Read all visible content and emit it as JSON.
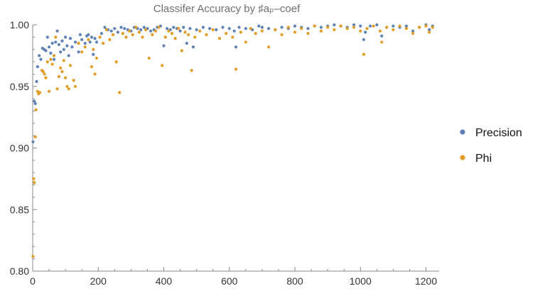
{
  "chart_data": {
    "type": "scatter",
    "title": "Classifer Accuracy by ♯aₚ–coef",
    "xlabel": "",
    "ylabel": "",
    "xlim": [
      0,
      1240
    ],
    "ylim": [
      0.8,
      1.0
    ],
    "x_ticks": [
      0,
      200,
      400,
      600,
      800,
      1000,
      1200
    ],
    "y_ticks": [
      0.8,
      0.85,
      0.9,
      0.95,
      1.0
    ],
    "x_tick_labels": [
      "0",
      "200",
      "400",
      "600",
      "800",
      "1000",
      "1200"
    ],
    "y_tick_labels": [
      "0.80",
      "0.85",
      "0.90",
      "0.95",
      "1.00"
    ],
    "legend_position": "right",
    "series": [
      {
        "name": "Precision",
        "color": "#5e81b5",
        "points": [
          [
            1,
            0.905
          ],
          [
            5,
            0.938
          ],
          [
            8,
            0.936
          ],
          [
            12,
            0.954
          ],
          [
            15,
            0.966
          ],
          [
            20,
            0.975
          ],
          [
            25,
            0.972
          ],
          [
            30,
            0.981
          ],
          [
            35,
            0.98
          ],
          [
            40,
            0.979
          ],
          [
            45,
            0.99
          ],
          [
            50,
            0.982
          ],
          [
            55,
            0.977
          ],
          [
            60,
            0.985
          ],
          [
            65,
            0.972
          ],
          [
            70,
            0.986
          ],
          [
            75,
            0.995
          ],
          [
            80,
            0.984
          ],
          [
            85,
            0.978
          ],
          [
            90,
            0.987
          ],
          [
            95,
            0.98
          ],
          [
            100,
            0.99
          ],
          [
            105,
            0.983
          ],
          [
            110,
            0.975
          ],
          [
            115,
            0.989
          ],
          [
            120,
            0.982
          ],
          [
            130,
            0.986
          ],
          [
            140,
            0.978
          ],
          [
            145,
            0.992
          ],
          [
            150,
            0.988
          ],
          [
            160,
            0.985
          ],
          [
            165,
            0.991
          ],
          [
            170,
            0.992
          ],
          [
            175,
            0.986
          ],
          [
            180,
            0.99
          ],
          [
            185,
            0.976
          ],
          [
            190,
            0.989
          ],
          [
            195,
            0.986
          ],
          [
            210,
            0.993
          ],
          [
            220,
            0.998
          ],
          [
            230,
            0.996
          ],
          [
            240,
            0.995
          ],
          [
            250,
            0.997
          ],
          [
            260,
            0.994
          ],
          [
            270,
            0.998
          ],
          [
            280,
            0.997
          ],
          [
            290,
            0.996
          ],
          [
            300,
            0.995
          ],
          [
            310,
            0.998
          ],
          [
            320,
            0.997
          ],
          [
            330,
            0.996
          ],
          [
            340,
            0.998
          ],
          [
            350,
            0.997
          ],
          [
            360,
            0.995
          ],
          [
            370,
            0.996
          ],
          [
            380,
            0.998
          ],
          [
            390,
            0.999
          ],
          [
            400,
            0.983
          ],
          [
            410,
            0.997
          ],
          [
            420,
            0.996
          ],
          [
            430,
            0.998
          ],
          [
            440,
            0.997
          ],
          [
            450,
            0.995
          ],
          [
            460,
            0.998
          ],
          [
            470,
            0.985
          ],
          [
            480,
            0.997
          ],
          [
            490,
            0.982
          ],
          [
            500,
            0.996
          ],
          [
            520,
            0.998
          ],
          [
            540,
            0.997
          ],
          [
            560,
            0.996
          ],
          [
            580,
            0.998
          ],
          [
            600,
            0.997
          ],
          [
            615,
            0.995
          ],
          [
            620,
            0.982
          ],
          [
            630,
            0.998
          ],
          [
            650,
            0.997
          ],
          [
            670,
            0.996
          ],
          [
            690,
            0.999
          ],
          [
            700,
            0.998
          ],
          [
            720,
            0.997
          ],
          [
            740,
            0.996
          ],
          [
            760,
            0.998
          ],
          [
            780,
            0.997
          ],
          [
            800,
            0.999
          ],
          [
            820,
            0.998
          ],
          [
            840,
            0.997
          ],
          [
            860,
            0.999
          ],
          [
            880,
            0.998
          ],
          [
            900,
            0.999
          ],
          [
            920,
            1.0
          ],
          [
            940,
            0.999
          ],
          [
            960,
            0.998
          ],
          [
            980,
            1.0
          ],
          [
            1000,
            0.999
          ],
          [
            1010,
            0.988
          ],
          [
            1015,
            0.994
          ],
          [
            1030,
            0.999
          ],
          [
            1050,
            1.0
          ],
          [
            1065,
            0.991
          ],
          [
            1080,
            0.998
          ],
          [
            1100,
            0.999
          ],
          [
            1120,
            0.998
          ],
          [
            1140,
            0.999
          ],
          [
            1160,
            0.995
          ],
          [
            1180,
            0.998
          ],
          [
            1200,
            1.0
          ],
          [
            1210,
            0.996
          ],
          [
            1220,
            0.999
          ]
        ]
      },
      {
        "name": "Phi",
        "color": "#e19c24",
        "points": [
          [
            1,
            0.812
          ],
          [
            3,
            0.875
          ],
          [
            5,
            0.872
          ],
          [
            8,
            0.909
          ],
          [
            10,
            0.931
          ],
          [
            15,
            0.946
          ],
          [
            18,
            0.944
          ],
          [
            22,
            0.945
          ],
          [
            28,
            0.963
          ],
          [
            32,
            0.962
          ],
          [
            36,
            0.96
          ],
          [
            40,
            0.957
          ],
          [
            45,
            0.97
          ],
          [
            50,
            0.946
          ],
          [
            55,
            0.972
          ],
          [
            60,
            0.968
          ],
          [
            65,
            0.975
          ],
          [
            70,
            0.99
          ],
          [
            75,
            0.948
          ],
          [
            80,
            0.958
          ],
          [
            85,
            0.965
          ],
          [
            90,
            0.962
          ],
          [
            95,
            0.971
          ],
          [
            100,
            0.957
          ],
          [
            105,
            0.95
          ],
          [
            110,
            0.948
          ],
          [
            115,
            0.967
          ],
          [
            125,
            0.955
          ],
          [
            130,
            0.95
          ],
          [
            140,
            0.985
          ],
          [
            150,
            0.978
          ],
          [
            160,
            0.982
          ],
          [
            170,
            0.988
          ],
          [
            180,
            0.966
          ],
          [
            185,
            0.98
          ],
          [
            190,
            0.96
          ],
          [
            195,
            0.973
          ],
          [
            205,
            0.99
          ],
          [
            215,
            0.985
          ],
          [
            225,
            0.996
          ],
          [
            235,
            0.988
          ],
          [
            245,
            0.992
          ],
          [
            255,
            0.97
          ],
          [
            265,
            0.945
          ],
          [
            275,
            0.993
          ],
          [
            285,
            0.99
          ],
          [
            295,
            0.995
          ],
          [
            305,
            0.992
          ],
          [
            315,
            0.998
          ],
          [
            325,
            0.994
          ],
          [
            335,
            0.99
          ],
          [
            345,
            0.996
          ],
          [
            355,
            0.973
          ],
          [
            365,
            0.992
          ],
          [
            375,
            0.995
          ],
          [
            385,
            0.998
          ],
          [
            395,
            0.967
          ],
          [
            405,
            0.99
          ],
          [
            415,
            0.995
          ],
          [
            425,
            0.993
          ],
          [
            435,
            0.989
          ],
          [
            445,
            0.997
          ],
          [
            455,
            0.979
          ],
          [
            465,
            0.994
          ],
          [
            475,
            0.992
          ],
          [
            485,
            0.963
          ],
          [
            495,
            0.99
          ],
          [
            510,
            0.995
          ],
          [
            530,
            0.992
          ],
          [
            550,
            0.996
          ],
          [
            570,
            0.989
          ],
          [
            590,
            0.993
          ],
          [
            610,
            0.99
          ],
          [
            620,
            0.964
          ],
          [
            635,
            0.994
          ],
          [
            650,
            0.986
          ],
          [
            665,
            0.997
          ],
          [
            680,
            0.993
          ],
          [
            700,
            0.995
          ],
          [
            720,
            0.982
          ],
          [
            740,
            0.996
          ],
          [
            760,
            0.992
          ],
          [
            780,
            0.998
          ],
          [
            800,
            0.994
          ],
          [
            820,
            0.997
          ],
          [
            840,
            0.993
          ],
          [
            860,
            0.999
          ],
          [
            880,
            0.995
          ],
          [
            900,
            0.998
          ],
          [
            920,
            0.996
          ],
          [
            940,
            0.999
          ],
          [
            960,
            0.997
          ],
          [
            980,
            0.998
          ],
          [
            1000,
            0.995
          ],
          [
            1010,
            0.976
          ],
          [
            1020,
            0.997
          ],
          [
            1040,
            0.999
          ],
          [
            1060,
            0.995
          ],
          [
            1065,
            0.986
          ],
          [
            1080,
            0.998
          ],
          [
            1100,
            0.996
          ],
          [
            1120,
            0.999
          ],
          [
            1140,
            0.997
          ],
          [
            1160,
            0.993
          ],
          [
            1180,
            0.998
          ],
          [
            1200,
            0.999
          ],
          [
            1210,
            0.994
          ],
          [
            1220,
            0.998
          ]
        ]
      }
    ]
  }
}
